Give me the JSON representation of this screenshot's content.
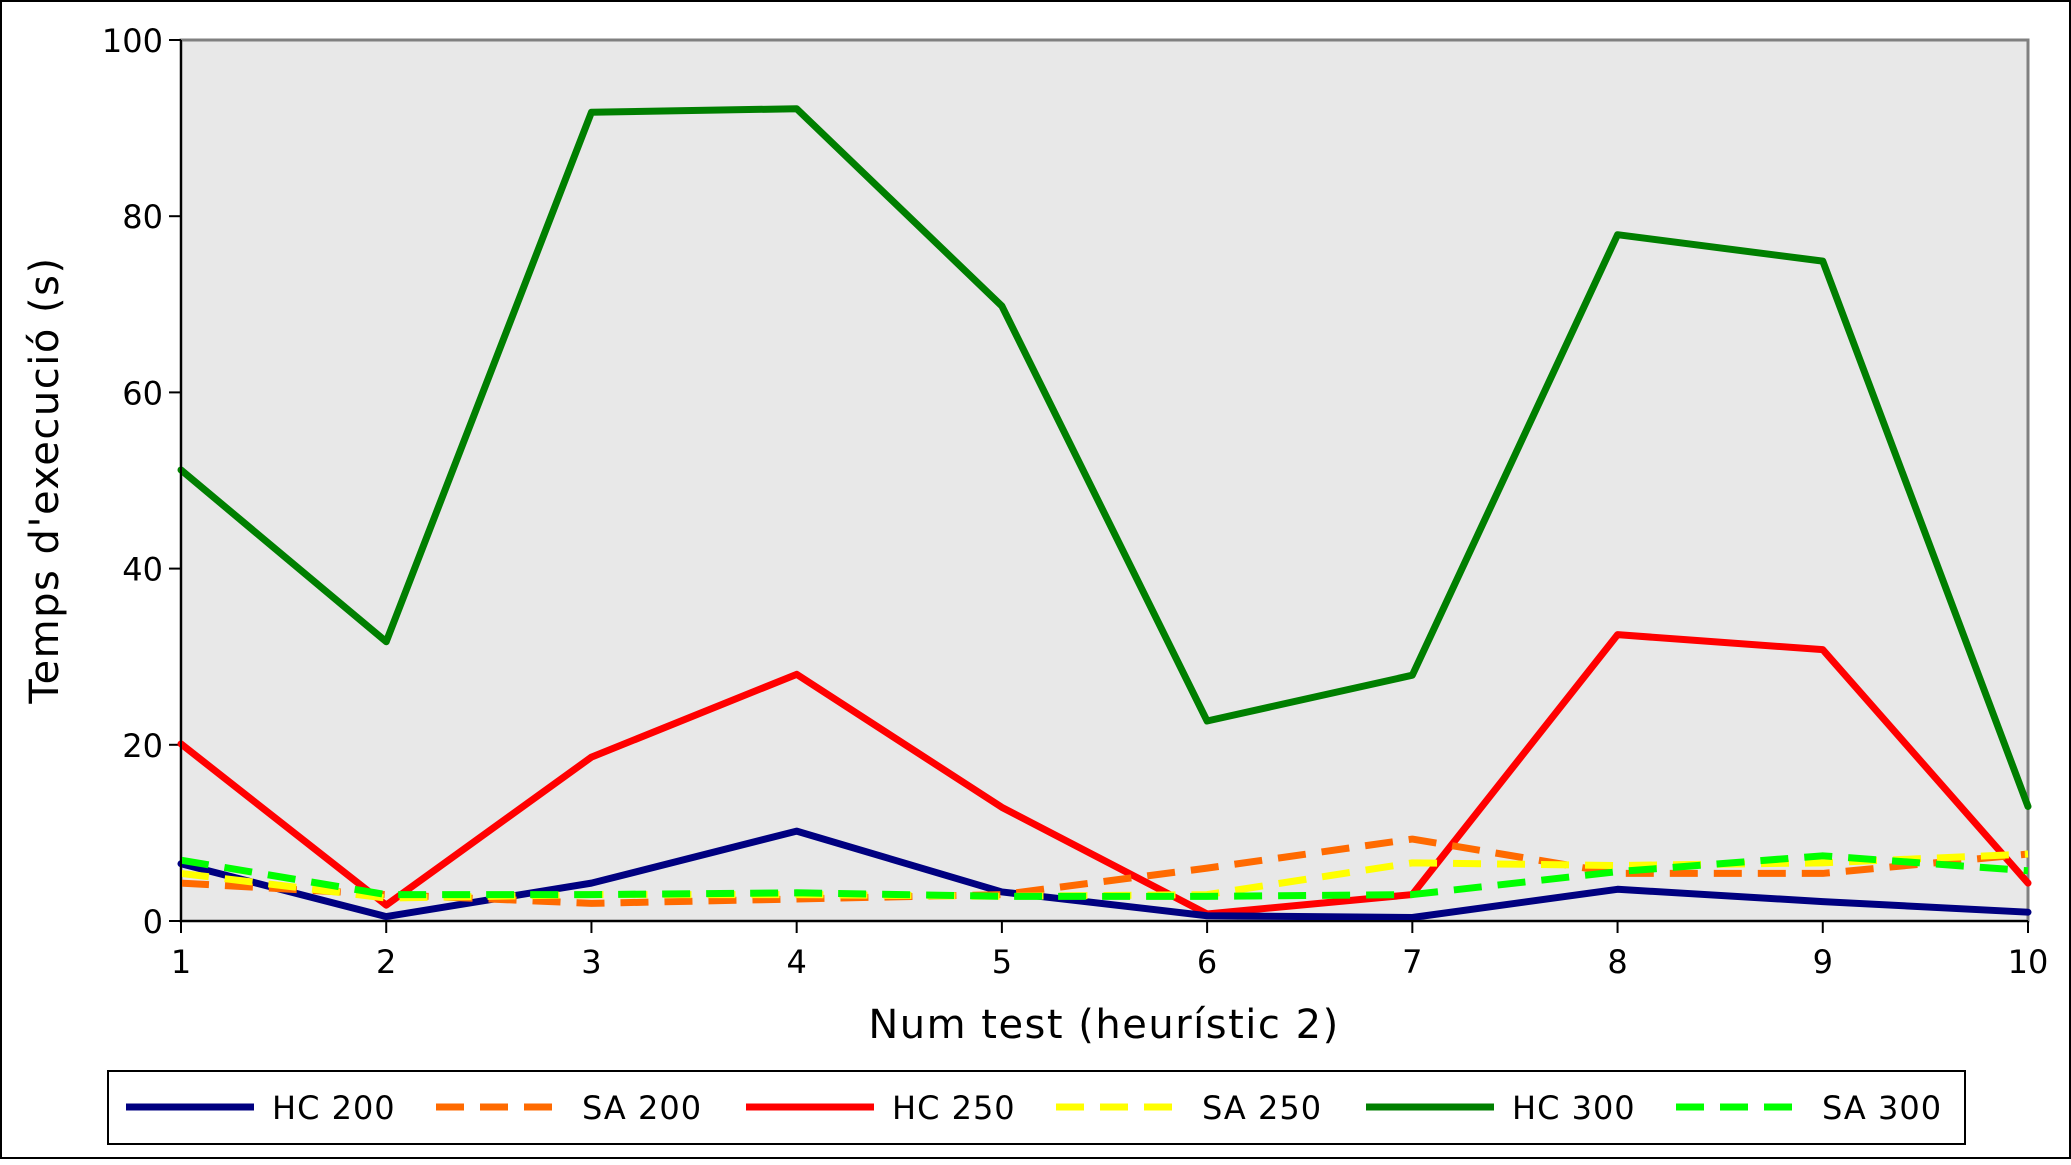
{
  "chart_data": {
    "type": "line",
    "title": "",
    "xlabel": "Num test (heurístic 2)",
    "ylabel": "Temps d'execució (s)",
    "x": [
      1,
      2,
      3,
      4,
      5,
      6,
      7,
      8,
      9,
      10
    ],
    "x_tick_labels": [
      "1",
      "2",
      "3",
      "4",
      "5",
      "6",
      "7",
      "8",
      "9",
      "10"
    ],
    "ylim": [
      0,
      100
    ],
    "xlim": [
      1,
      10
    ],
    "y_tick_labels": [
      "0",
      "20",
      "40",
      "60",
      "80",
      "100"
    ],
    "y_ticks": [
      0,
      20,
      40,
      60,
      80,
      100
    ],
    "grid": false,
    "plot_background": "#e8e8e8",
    "legend_position": "bottom",
    "series": [
      {
        "name": "HC 200",
        "color": "#000080",
        "dashed": false,
        "values": [
          6.5,
          0.5,
          4.3,
          10.2,
          3.3,
          0.6,
          0.4,
          3.6,
          2.2,
          1.0
        ]
      },
      {
        "name": "SA 200",
        "color": "#ff6a00",
        "dashed": true,
        "values": [
          4.3,
          3.0,
          2.0,
          2.5,
          3.0,
          6.0,
          9.3,
          5.4,
          5.4,
          7.6
        ]
      },
      {
        "name": "HC 250",
        "color": "#ff0000",
        "dashed": false,
        "values": [
          20.1,
          1.8,
          18.6,
          28.0,
          12.9,
          0.8,
          3.0,
          32.5,
          30.8,
          4.3
        ]
      },
      {
        "name": "SA 250",
        "color": "#ffff00",
        "dashed": true,
        "values": [
          5.4,
          2.6,
          3.0,
          3.0,
          2.8,
          3.0,
          6.6,
          6.3,
          6.6,
          7.6
        ]
      },
      {
        "name": "HC 300",
        "color": "#007f00",
        "dashed": false,
        "values": [
          51.2,
          31.7,
          91.8,
          92.2,
          69.8,
          22.7,
          27.9,
          77.9,
          74.9,
          13.0
        ]
      },
      {
        "name": "SA 300",
        "color": "#00ff00",
        "dashed": true,
        "values": [
          6.9,
          3.0,
          3.0,
          3.2,
          2.8,
          2.8,
          3.0,
          5.6,
          7.4,
          5.7
        ]
      }
    ]
  }
}
